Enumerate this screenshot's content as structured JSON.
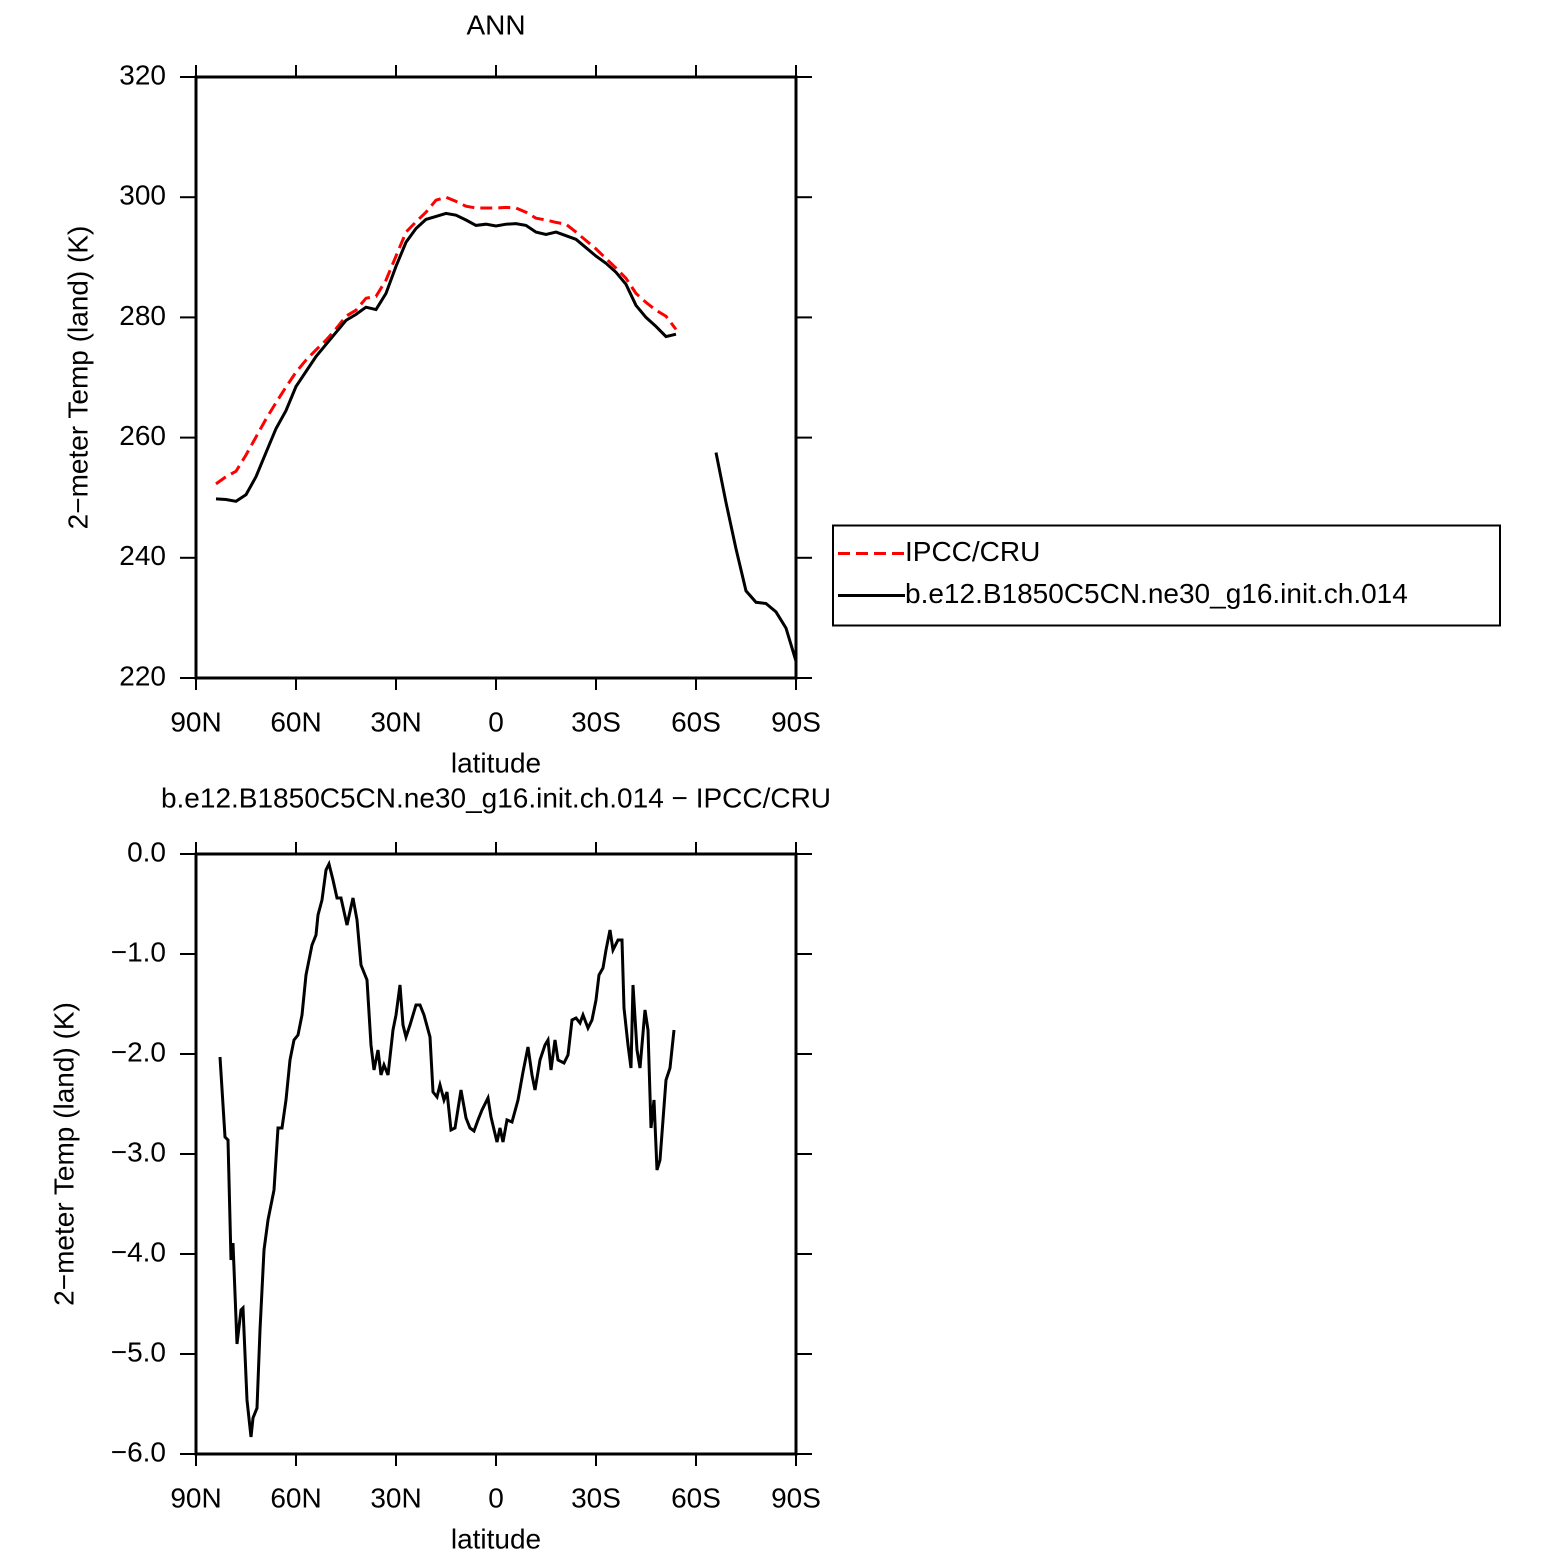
{
  "chart_data": [
    {
      "type": "line",
      "title": "ANN",
      "xlabel": "latitude",
      "ylabel": "2−meter Temp (land) (K)",
      "xlim": [
        90,
        -90
      ],
      "ylim": [
        220,
        320
      ],
      "xticks": [
        {
          "value": 90,
          "label": "90N"
        },
        {
          "value": 60,
          "label": "60N"
        },
        {
          "value": 30,
          "label": "30N"
        },
        0,
        {
          "value": -30,
          "label": "30S"
        },
        {
          "value": -60,
          "label": "60S"
        },
        {
          "value": -90,
          "label": "90S"
        }
      ],
      "yticks": [
        220,
        240,
        260,
        280,
        300,
        320
      ],
      "legend": "right",
      "x": [
        84,
        81,
        78,
        75,
        72,
        69,
        66,
        63,
        60,
        57,
        54,
        51,
        48,
        45,
        42,
        39,
        36,
        33,
        30,
        27,
        24,
        21,
        18,
        15,
        12,
        9,
        6,
        3,
        0,
        -3,
        -6,
        -9,
        -12,
        -15,
        -18,
        -21,
        -24,
        -27,
        -30,
        -33,
        -36,
        -39,
        -42,
        -45,
        -48,
        -51,
        -54,
        -57,
        -60,
        -63,
        -66,
        -69,
        -72,
        -75,
        -78,
        -81,
        -84,
        -87,
        -90
      ],
      "series": [
        {
          "name": "IPCC/CRU",
          "color": "#ff0000",
          "dash": "dashed",
          "values": [
            252.3,
            253.5,
            254.4,
            257.1,
            260.1,
            263.1,
            265.8,
            268.4,
            270.9,
            272.9,
            274.6,
            276.2,
            278.1,
            280.2,
            281.2,
            283.2,
            283.5,
            286.2,
            290.2,
            294.2,
            295.9,
            297.5,
            299.5,
            300,
            299.3,
            298.5,
            298.2,
            298.2,
            298.2,
            298.3,
            298.2,
            297.5,
            296.5,
            296.2,
            295.8,
            295.5,
            294.2,
            292.8,
            291.4,
            289.8,
            288.2,
            286.5,
            284,
            282.5,
            281.2,
            280.2,
            278,
            null,
            null,
            null,
            null,
            null,
            null,
            null,
            null,
            null,
            null,
            null,
            null
          ]
        },
        {
          "name": "b.e12.B1850C5CN.ne30_g16.init.ch.014",
          "color": "#000000",
          "dash": "solid",
          "values": [
            249.8,
            249.7,
            249.4,
            250.5,
            253.5,
            257.5,
            261.5,
            264.5,
            268.5,
            271,
            273.5,
            275.5,
            277.5,
            279.5,
            280.5,
            281.7,
            281.3,
            284,
            288.5,
            292.5,
            294.8,
            296.3,
            296.8,
            297.3,
            297,
            296.2,
            295.3,
            295.5,
            295.2,
            295.5,
            295.6,
            295.3,
            294.2,
            293.8,
            294.2,
            293.6,
            293,
            291.6,
            290.2,
            289,
            287.5,
            285.5,
            282,
            280,
            278.5,
            276.8,
            277.2,
            null,
            null,
            null,
            257.5,
            249.2,
            241.5,
            234.5,
            232.6,
            232.4,
            231,
            228.3,
            222.8
          ]
        }
      ]
    },
    {
      "type": "line",
      "title": "b.e12.B1850C5CN.ne30_g16.init.ch.014 − IPCC/CRU",
      "xlabel": "latitude",
      "ylabel": "2−meter Temp (land) (K)",
      "xlim": [
        90,
        -90
      ],
      "ylim": [
        -6,
        0
      ],
      "xticks": [
        {
          "value": 90,
          "label": "90N"
        },
        {
          "value": 60,
          "label": "60N"
        },
        {
          "value": 30,
          "label": "30N"
        },
        0,
        {
          "value": -30,
          "label": "30S"
        },
        {
          "value": -60,
          "label": "60S"
        },
        {
          "value": -90,
          "label": "90S"
        }
      ],
      "yticks": [
        {
          "value": -6,
          "label": "−6.0"
        },
        {
          "value": -5,
          "label": "−5.0"
        },
        {
          "value": -4,
          "label": "−4.0"
        },
        {
          "value": -3,
          "label": "−3.0"
        },
        {
          "value": -2,
          "label": "−2.0"
        },
        {
          "value": -1,
          "label": "−1.0"
        },
        {
          "value": 0,
          "label": "0.0"
        }
      ],
      "x": [
        82.8,
        81.3,
        80.4,
        79.5,
        78.9,
        77.7,
        76.5,
        75.9,
        74.7,
        73.5,
        72.9,
        71.7,
        70.8,
        69.6,
        68.4,
        66.6,
        65.4,
        64.2,
        63.0,
        61.8,
        60.6,
        59.4,
        58.2,
        57.0,
        55.2,
        54.0,
        53.4,
        52.2,
        51.0,
        50.1,
        48.9,
        47.7,
        46.5,
        44.7,
        42.9,
        41.7,
        40.5,
        38.7,
        37.5,
        36.6,
        35.4,
        34.5,
        33.6,
        32.4,
        30.9,
        30.0,
        28.8,
        27.9,
        27.0,
        25.8,
        24.0,
        22.8,
        21.6,
        19.8,
        18.9,
        17.7,
        16.8,
        15.6,
        14.7,
        13.5,
        12.3,
        10.5,
        9.0,
        7.8,
        6.6,
        5.4,
        4.2,
        2.4,
        1.5,
        -0.3,
        -1.2,
        -2.1,
        -3.3,
        -4.8,
        -6.6,
        -8.1,
        -9.6,
        -10.8,
        -11.7,
        -13.2,
        -14.7,
        -15.6,
        -16.5,
        -17.7,
        -18.6,
        -20.4,
        -21.6,
        -22.8,
        -24.0,
        -25.2,
        -26.1,
        -27.6,
        -28.8,
        -30.0,
        -30.9,
        -32.1,
        -33.0,
        -34.2,
        -35.1,
        -36.6,
        -37.8,
        -38.4,
        -39.6,
        -40.5,
        -41.1,
        -42.3,
        -43.2,
        -44.7,
        -45.6,
        -46.5,
        -47.4,
        -48.3,
        -49.2,
        -51.0,
        -52.2,
        -53.4
      ],
      "series": [
        {
          "color": "#000000",
          "dash": "solid",
          "values": [
            -2.03,
            -2.83,
            -2.86,
            -4.06,
            -3.89,
            -4.9,
            -4.56,
            -4.54,
            -5.46,
            -5.83,
            -5.64,
            -5.54,
            -4.76,
            -3.96,
            -3.66,
            -3.36,
            -2.74,
            -2.74,
            -2.46,
            -2.06,
            -1.86,
            -1.81,
            -1.61,
            -1.21,
            -0.91,
            -0.81,
            -0.61,
            -0.46,
            -0.16,
            -0.1,
            -0.26,
            -0.44,
            -0.44,
            -0.71,
            -0.44,
            -0.66,
            -1.11,
            -1.26,
            -1.91,
            -2.16,
            -1.96,
            -2.21,
            -2.11,
            -2.21,
            -1.76,
            -1.61,
            -1.31,
            -1.71,
            -1.83,
            -1.71,
            -1.51,
            -1.51,
            -1.61,
            -1.83,
            -2.38,
            -2.43,
            -2.31,
            -2.46,
            -2.38,
            -2.76,
            -2.74,
            -2.36,
            -2.64,
            -2.74,
            -2.77,
            -2.66,
            -2.56,
            -2.44,
            -2.63,
            -2.88,
            -2.74,
            -2.88,
            -2.66,
            -2.68,
            -2.46,
            -2.18,
            -1.93,
            -2.21,
            -2.36,
            -2.06,
            -1.91,
            -1.86,
            -2.16,
            -1.86,
            -2.06,
            -2.09,
            -2.01,
            -1.66,
            -1.64,
            -1.69,
            -1.61,
            -1.74,
            -1.66,
            -1.46,
            -1.21,
            -1.14,
            -0.96,
            -0.76,
            -0.96,
            -0.86,
            -0.86,
            -1.54,
            -1.91,
            -2.14,
            -1.31,
            -1.96,
            -2.14,
            -1.56,
            -1.76,
            -2.74,
            -2.46,
            -3.16,
            -3.06,
            -2.26,
            -2.14,
            -1.76
          ]
        }
      ]
    }
  ]
}
